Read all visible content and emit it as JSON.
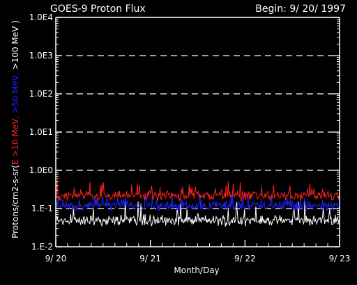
{
  "chart_data": {
    "type": "line",
    "title": "GOES-9 Proton Flux",
    "begin": "Begin: 9/ 20/ 1997",
    "xlabel": "Month/Day",
    "ylabel_parts": [
      {
        "text": "Protons/cm2-s-sr(",
        "color": "#ffffff"
      },
      {
        "text": "E >10 MeV,",
        "color": "#ff2020"
      },
      {
        "text": " >50 MeV,",
        "color": "#2020ff"
      },
      {
        "text": " >100 MeV )",
        "color": "#ffffff"
      }
    ],
    "x_ticks": [
      "9/ 20",
      "9/ 21",
      "9/ 22",
      "9/ 23"
    ],
    "xlim_days": [
      0,
      3
    ],
    "y_scale": "log",
    "ylim": [
      0.01,
      10000
    ],
    "y_ticks": [
      "1.0E4",
      "1.0E3",
      "1.0E2",
      "1.0E1",
      "1.0E0",
      "1.E-1",
      "1.E-2"
    ],
    "y_tick_values": [
      10000,
      1000,
      100,
      10,
      1,
      0.1,
      0.01
    ],
    "grid": "dashed horizontal at each decade",
    "series": [
      {
        "name": "E >10 MeV",
        "color": "#ff2020",
        "typical": 0.22,
        "min": 0.13,
        "max": 0.55
      },
      {
        "name": ">50 MeV",
        "color": "#2020ff",
        "typical": 0.12,
        "min": 0.07,
        "max": 0.25
      },
      {
        "name": ">100 MeV",
        "color": "#ffffff",
        "typical": 0.05,
        "min": 0.028,
        "max": 0.17
      }
    ]
  }
}
